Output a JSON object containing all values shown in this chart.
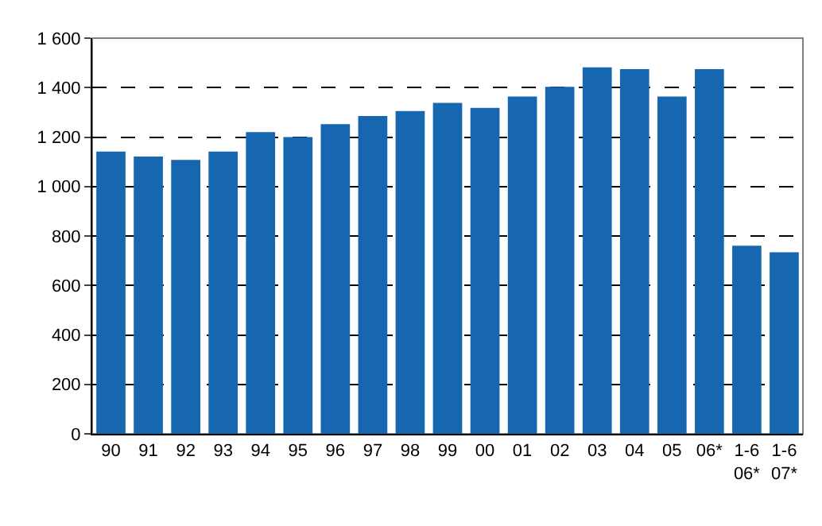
{
  "chart_data": {
    "type": "bar",
    "categories": [
      "90",
      "91",
      "92",
      "93",
      "94",
      "95",
      "96",
      "97",
      "98",
      "99",
      "00",
      "01",
      "02",
      "03",
      "04",
      "05",
      "06*",
      "1-6\n06*",
      "1-6\n07*"
    ],
    "values": [
      1141,
      1121,
      1108,
      1141,
      1220,
      1200,
      1252,
      1285,
      1305,
      1338,
      1318,
      1364,
      1403,
      1482,
      1475,
      1364,
      1475,
      761,
      734
    ],
    "color": "#1767b0",
    "ylim": [
      0,
      1600
    ],
    "yticks": [
      0,
      200,
      400,
      600,
      800,
      {
        "value": 1000,
        "label": "1 000"
      },
      {
        "value": 1200,
        "label": "1 200"
      },
      {
        "value": 1400,
        "label": "1 400"
      },
      {
        "value": 1600,
        "label": "1 600"
      }
    ],
    "grid": "y"
  }
}
